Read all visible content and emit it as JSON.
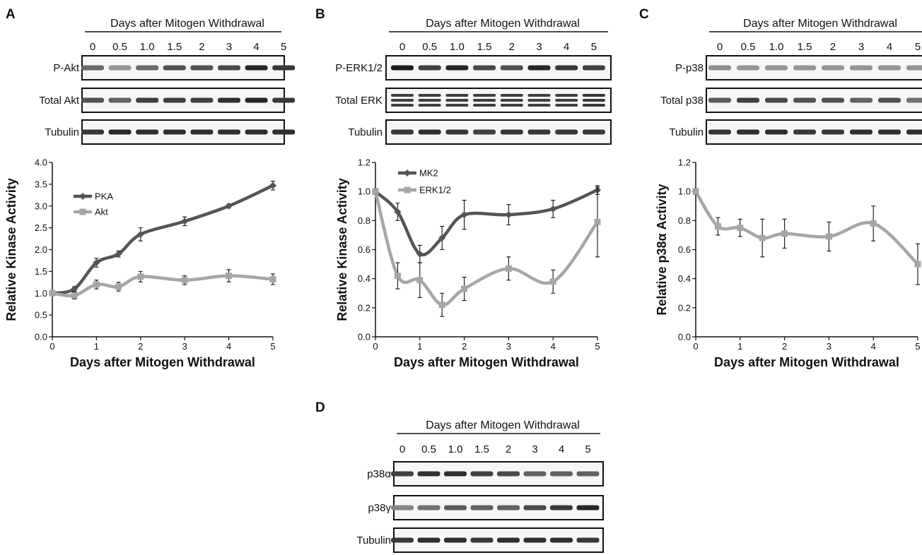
{
  "header_text": "Days after Mitogen Withdrawal",
  "lanes": [
    "0",
    "0.5",
    "1.0",
    "1.5",
    "2",
    "3",
    "4",
    "5"
  ],
  "x_axis_title": "Days after Mitogen Withdrawal",
  "panels": [
    {
      "letter": "A",
      "blots": [
        {
          "label": "P-Akt",
          "intensities": [
            0.55,
            0.3,
            0.55,
            0.7,
            0.7,
            0.75,
            0.95,
            0.85
          ],
          "background": "#f7f7f7"
        },
        {
          "label": "Total Akt",
          "intensities": [
            0.7,
            0.6,
            0.8,
            0.8,
            0.8,
            0.9,
            0.95,
            0.85
          ],
          "background": "#f7f7f7"
        },
        {
          "label": "Tubulin",
          "intensities": [
            0.85,
            0.95,
            0.9,
            0.9,
            0.9,
            0.9,
            0.9,
            0.9
          ],
          "background": "#f7f7f7"
        }
      ]
    },
    {
      "letter": "B",
      "blots": [
        {
          "label": "P-ERK1/2",
          "intensities": [
            1.0,
            0.8,
            0.95,
            0.75,
            0.7,
            0.95,
            0.85,
            0.8
          ],
          "background": "#eeeeee"
        },
        {
          "label": "Total ERK",
          "intensities": [
            0.8,
            0.8,
            0.8,
            0.8,
            0.8,
            0.8,
            0.8,
            0.85
          ],
          "background": "#f3f3f3"
        },
        {
          "label": "Tubulin",
          "intensities": [
            0.85,
            0.9,
            0.85,
            0.8,
            0.85,
            0.85,
            0.85,
            0.85
          ],
          "background": "#f7f7f7"
        }
      ]
    },
    {
      "letter": "C",
      "blots": [
        {
          "label": "P-p38",
          "intensities": [
            0.35,
            0.3,
            0.3,
            0.3,
            0.3,
            0.3,
            0.3,
            0.3
          ],
          "background": "#bdbdbd"
        },
        {
          "label": "Total p38",
          "intensities": [
            0.65,
            0.8,
            0.75,
            0.7,
            0.7,
            0.6,
            0.7,
            0.5
          ],
          "background": "#f5f5f5"
        },
        {
          "label": "Tubulin",
          "intensities": [
            0.85,
            0.9,
            0.9,
            0.85,
            0.85,
            0.9,
            0.9,
            0.9
          ],
          "background": "#f7f7f7"
        }
      ]
    },
    {
      "letter": "D",
      "blots": [
        {
          "label": "p38α",
          "intensities": [
            0.8,
            0.9,
            0.9,
            0.8,
            0.75,
            0.6,
            0.6,
            0.6
          ],
          "background": "#f5f5f5"
        },
        {
          "label": "p38γ",
          "intensities": [
            0.4,
            0.5,
            0.65,
            0.6,
            0.6,
            0.75,
            0.85,
            0.95
          ],
          "background": "#e8e8e8"
        },
        {
          "label": "Tubulin",
          "intensities": [
            0.85,
            0.9,
            0.9,
            0.85,
            0.9,
            0.9,
            0.9,
            0.85
          ],
          "background": "#f7f7f7"
        }
      ]
    }
  ],
  "chart_data": [
    {
      "type": "line",
      "panel": "A",
      "xlabel": "Days after Mitogen Withdrawal",
      "ylabel": "Relative Kinase Activity",
      "xlim": [
        0,
        5
      ],
      "ylim": [
        0,
        4.0
      ],
      "xticks": [
        0,
        1,
        2,
        3,
        4,
        5
      ],
      "yticks": [
        0.0,
        0.5,
        1.0,
        1.5,
        2.0,
        2.5,
        3.0,
        3.5,
        4.0
      ],
      "ytick_labels": [
        "0.0",
        "0.5",
        "1.0",
        "1.5",
        "2.0",
        "2.5",
        "3.0",
        "3.5",
        "4.0"
      ],
      "grid": false,
      "legend_position": "upper-left",
      "series": [
        {
          "name": "PKA",
          "color": "#555555",
          "marker": "diamond",
          "x": [
            0,
            0.5,
            1,
            1.5,
            2,
            3,
            4,
            5
          ],
          "y": [
            1.0,
            1.1,
            1.7,
            1.9,
            2.35,
            2.65,
            3.0,
            3.47
          ],
          "err": [
            0.03,
            0.05,
            0.1,
            0.07,
            0.15,
            0.1,
            0.04,
            0.1
          ]
        },
        {
          "name": "Akt",
          "color": "#a6a6a6",
          "marker": "square",
          "x": [
            0,
            0.5,
            1,
            1.5,
            2,
            3,
            4,
            5
          ],
          "y": [
            1.0,
            0.95,
            1.2,
            1.15,
            1.38,
            1.3,
            1.4,
            1.32
          ],
          "err": [
            0.03,
            0.08,
            0.1,
            0.1,
            0.12,
            0.1,
            0.14,
            0.12
          ]
        }
      ]
    },
    {
      "type": "line",
      "panel": "B",
      "xlabel": "Days after Mitogen Withdrawal",
      "ylabel": "Relative Kinase Activity",
      "xlim": [
        0,
        5
      ],
      "ylim": [
        0,
        1.2
      ],
      "xticks": [
        0,
        1,
        2,
        3,
        4,
        5
      ],
      "yticks": [
        0.0,
        0.2,
        0.4,
        0.6,
        0.8,
        1.0,
        1.2
      ],
      "ytick_labels": [
        "0.0",
        "0.2",
        "0.4",
        "0.6",
        "0.8",
        "1.0",
        "1.2"
      ],
      "grid": false,
      "legend_position": "upper-left",
      "series": [
        {
          "name": "MK2",
          "color": "#555555",
          "marker": "diamond",
          "x": [
            0,
            0.5,
            1,
            1.5,
            2,
            3,
            4,
            5
          ],
          "y": [
            1.0,
            0.86,
            0.57,
            0.68,
            0.84,
            0.84,
            0.88,
            1.01
          ],
          "err": [
            0.02,
            0.06,
            0.06,
            0.08,
            0.1,
            0.07,
            0.06,
            0.03
          ]
        },
        {
          "name": "ERK1/2",
          "color": "#a6a6a6",
          "marker": "square",
          "x": [
            0,
            0.5,
            1,
            1.5,
            2,
            3,
            4,
            5
          ],
          "y": [
            1.0,
            0.42,
            0.39,
            0.22,
            0.33,
            0.47,
            0.38,
            0.79
          ],
          "err": [
            0.02,
            0.09,
            0.12,
            0.08,
            0.08,
            0.08,
            0.08,
            0.24
          ]
        }
      ]
    },
    {
      "type": "line",
      "panel": "C",
      "xlabel": "Days after Mitogen Withdrawal",
      "ylabel": "Relative p38α Activity",
      "xlim": [
        0,
        5
      ],
      "ylim": [
        0,
        1.2
      ],
      "xticks": [
        0,
        1,
        2,
        3,
        4,
        5
      ],
      "yticks": [
        0.0,
        0.2,
        0.4,
        0.6,
        0.8,
        1.0,
        1.2
      ],
      "ytick_labels": [
        "0.0",
        "0.2",
        "0.4",
        "0.6",
        "0.8",
        "1.0",
        "1.2"
      ],
      "grid": false,
      "series": [
        {
          "color": "#a6a6a6",
          "marker": "square",
          "x": [
            0,
            0.5,
            1,
            1.5,
            2,
            3,
            4,
            5
          ],
          "y": [
            1.0,
            0.76,
            0.75,
            0.68,
            0.71,
            0.69,
            0.78,
            0.5
          ],
          "err": [
            0.02,
            0.06,
            0.06,
            0.13,
            0.1,
            0.1,
            0.12,
            0.14
          ]
        }
      ]
    }
  ]
}
